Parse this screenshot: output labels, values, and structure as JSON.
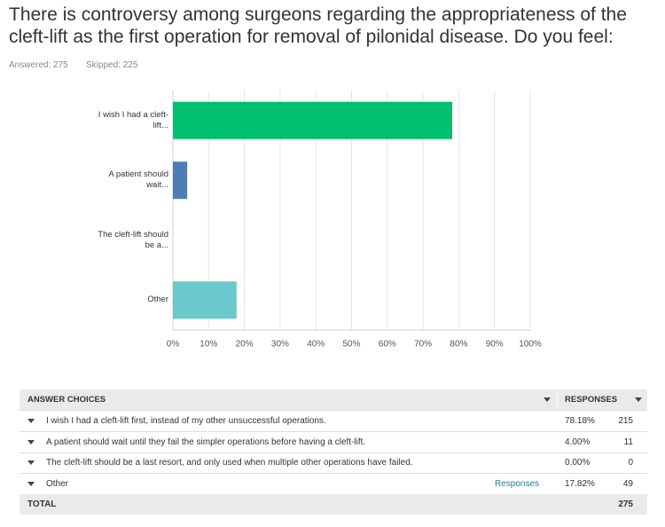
{
  "question_lines": [
    "There is controversy among surgeons regarding the appropriateness of the",
    "cleft-lift as the first operation for removal of pilonidal disease. Do you feel:"
  ],
  "answered_label": "Answered:",
  "answered": 275,
  "skipped_label": "Skipped:",
  "skipped": 225,
  "chart_data": {
    "type": "hbar",
    "categories": [
      "I wish I had a cleft-lift...",
      "A patient should wait...",
      "The cleft-lift should be a...",
      "Other"
    ],
    "values": [
      78.18,
      4.0,
      0,
      17.82
    ],
    "colors": [
      "#00bf6f",
      "#507cb6",
      "#f05b24",
      "#6bc8cd"
    ],
    "xlim": [
      0,
      100
    ],
    "xticks": [
      {
        "value": 0,
        "label": "0%"
      },
      {
        "value": 10,
        "label": "10%"
      },
      {
        "value": 20,
        "label": "20%"
      },
      {
        "value": 30,
        "label": "30%"
      },
      {
        "value": 40,
        "label": "40%"
      },
      {
        "value": 50,
        "label": "50%"
      },
      {
        "value": 60,
        "label": "60%"
      },
      {
        "value": 70,
        "label": "70%"
      },
      {
        "value": 80,
        "label": "80%"
      },
      {
        "value": 90,
        "label": "90%"
      },
      {
        "value": 100,
        "label": "100%"
      }
    ],
    "grid": true
  },
  "table": {
    "header_choices": "ANSWER CHOICES",
    "header_responses": "RESPONSES",
    "rows": [
      {
        "choice": "I wish I had a cleft-lift first, instead of my other unsuccessful operations.",
        "percent": "78.18%",
        "count": 215
      },
      {
        "choice": "A patient should wait until they fail the simpler operations before having a cleft-lift.",
        "percent": "4.00%",
        "count": 11
      },
      {
        "choice": "The cleft-lift should be a last resort, and only used when multiple other operations have failed.",
        "percent": "0.00%",
        "count": 0
      },
      {
        "choice": "Other",
        "link": "Responses",
        "percent": "17.82%",
        "count": 49
      }
    ],
    "total_label": "TOTAL",
    "total": 275
  }
}
